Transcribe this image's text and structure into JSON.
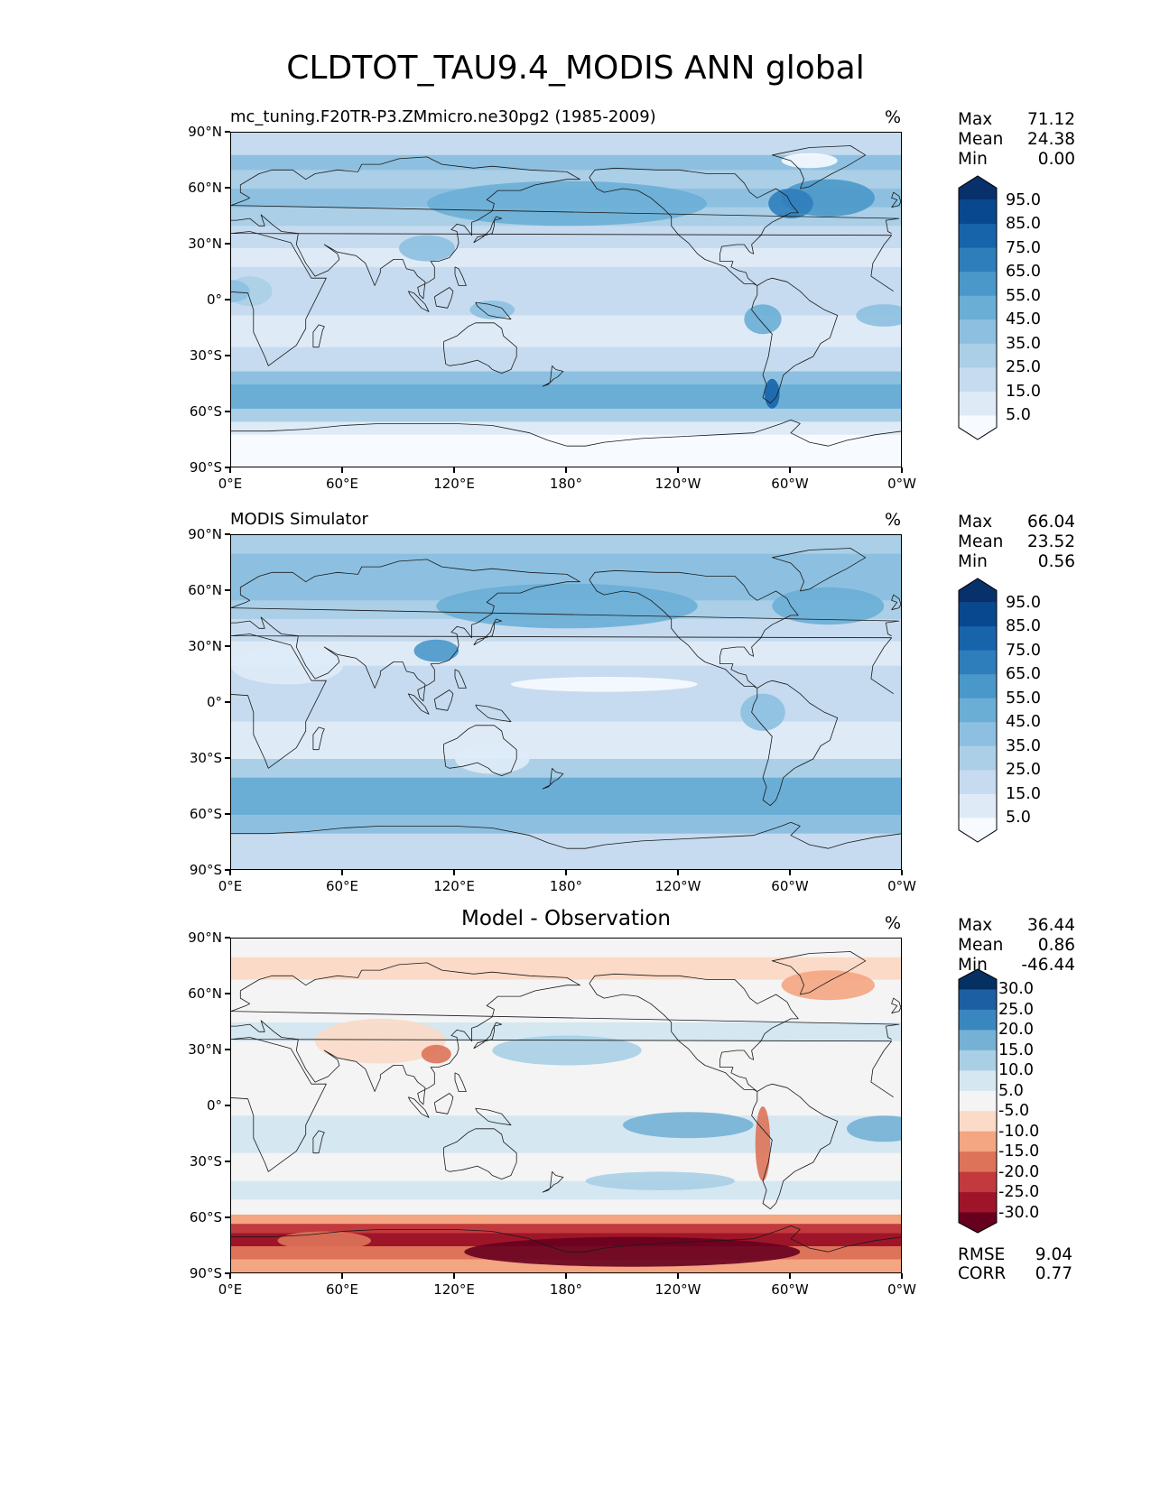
{
  "title": "CLDTOT_TAU9.4_MODIS ANN global",
  "lat_ticks": [
    "90°N",
    "60°N",
    "30°N",
    "0°",
    "30°S",
    "60°S",
    "90°S"
  ],
  "lon_ticks": [
    "0°E",
    "60°E",
    "120°E",
    "180°",
    "120°W",
    "60°W",
    "0°W"
  ],
  "panels": [
    {
      "id": "model",
      "title": "mc_tuning.F20TR-P3.ZMmicro.ne30pg2 (1985-2009)",
      "title_style": "left",
      "units": "%",
      "stats": [
        {
          "k": "Max",
          "v": "71.12"
        },
        {
          "k": "Mean",
          "v": "24.38"
        },
        {
          "k": "Min",
          "v": "0.00"
        }
      ],
      "colorbar_labels": [
        "95.0",
        "85.0",
        "75.0",
        "65.0",
        "55.0",
        "45.0",
        "35.0",
        "25.0",
        "15.0",
        "5.0"
      ],
      "colormap": "blues"
    },
    {
      "id": "obs",
      "title": "MODIS Simulator",
      "title_style": "left",
      "units": "%",
      "stats": [
        {
          "k": "Max",
          "v": "66.04"
        },
        {
          "k": "Mean",
          "v": "23.52"
        },
        {
          "k": "Min",
          "v": "0.56"
        }
      ],
      "colorbar_labels": [
        "95.0",
        "85.0",
        "75.0",
        "65.0",
        "55.0",
        "45.0",
        "35.0",
        "25.0",
        "15.0",
        "5.0"
      ],
      "colormap": "blues"
    },
    {
      "id": "diff",
      "title": "Model - Observation",
      "title_style": "center",
      "units": "%",
      "stats": [
        {
          "k": "Max",
          "v": "36.44"
        },
        {
          "k": "Mean",
          "v": "0.86"
        },
        {
          "k": "Min",
          "v": "-46.44"
        }
      ],
      "colorbar_labels": [
        "30.0",
        "25.0",
        "20.0",
        "15.0",
        "10.0",
        "5.0",
        "-5.0",
        "-10.0",
        "-15.0",
        "-20.0",
        "-25.0",
        "-30.0"
      ],
      "colormap": "rdbu",
      "errors": [
        {
          "k": "RMSE",
          "v": "9.04"
        },
        {
          "k": "CORR",
          "v": "0.77"
        }
      ]
    }
  ],
  "colors": {
    "blues": [
      "#f7fbff",
      "#deebf7",
      "#c6dbef",
      "#aacfe6",
      "#8dc0e0",
      "#6aaed6",
      "#4a98c9",
      "#2f7ebc",
      "#1764ab",
      "#08488e",
      "#08306b"
    ],
    "rdbu": [
      "#053061",
      "#1d5fa3",
      "#3a87bf",
      "#74b1d5",
      "#a9cfe5",
      "#d5e7f1",
      "#f4f4f4",
      "#fbdac8",
      "#f4a582",
      "#dd7359",
      "#c23a3e",
      "#9e1529",
      "#67001f"
    ]
  }
}
